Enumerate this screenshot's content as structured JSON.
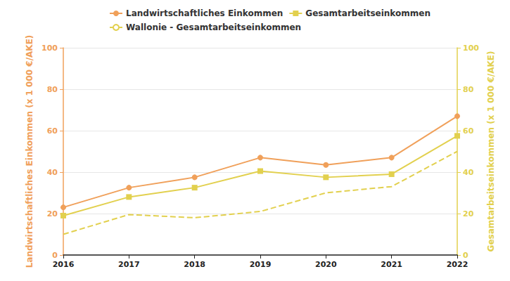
{
  "chart_data": {
    "type": "line",
    "categories": [
      "2016",
      "2017",
      "2018",
      "2019",
      "2020",
      "2021",
      "2022"
    ],
    "y_label": "Landwirtschaftliches Einkommen (x 1 000 €/AKE)",
    "y2_label": "Gesamtarbeitseinkommen (x 1 000 €/AKE)",
    "ylim": [
      0,
      100
    ],
    "yticks": [
      0,
      20,
      40,
      60,
      80,
      100
    ],
    "y2lim": [
      0,
      100
    ],
    "y2ticks": [
      0,
      20,
      40,
      60,
      80,
      100
    ],
    "grid": true,
    "legend": "top",
    "series": [
      {
        "name": "Landwirtschaftliches Einkommen",
        "color": "#f0a05a",
        "marker": "circle",
        "line_style": "solid",
        "axis": "y",
        "values": [
          23,
          32.5,
          37.5,
          47,
          43.5,
          47,
          67
        ]
      },
      {
        "name": "Gesamtarbeitseinkommen",
        "color": "#e2d04e",
        "marker": "square",
        "line_style": "solid",
        "axis": "y2",
        "values": [
          19,
          28,
          32.5,
          40.5,
          37.5,
          39,
          57.5
        ]
      },
      {
        "name": "Wallonie - Gesamtarbeitseinkommen",
        "color": "#e2d04e",
        "marker": "none",
        "line_style": "dashed",
        "axis": "y2",
        "values": [
          10,
          19.5,
          18,
          21,
          30,
          33,
          50
        ]
      }
    ]
  }
}
